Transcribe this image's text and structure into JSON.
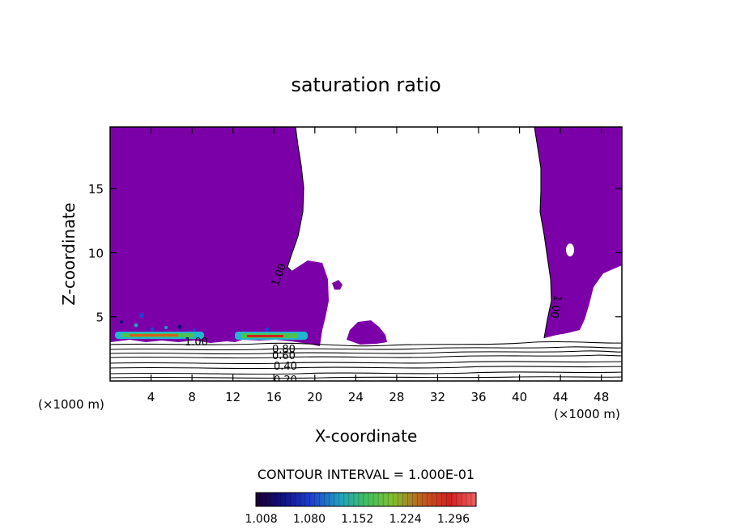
{
  "chart_data": {
    "type": "contour",
    "title": "saturation ratio",
    "xlabel": "X-coordinate",
    "ylabel": "Z-coordinate",
    "x_unit_left": "(×1000 m)",
    "x_unit_right": "(×1000 m)",
    "xlim": [
      0,
      50
    ],
    "ylim": [
      0,
      19.8
    ],
    "x_ticks": [
      4,
      8,
      12,
      16,
      20,
      24,
      28,
      32,
      36,
      40,
      44,
      48
    ],
    "y_ticks": [
      5,
      10,
      15
    ],
    "contour_labels": [
      "1.00",
      "1.00",
      "1.00",
      "0.80",
      "0.60",
      "0.40",
      "0.20"
    ],
    "contour_interval_text": "CONTOUR INTERVAL = 1.000E-01",
    "colorbar_labels": [
      "1.008",
      "1.080",
      "1.152",
      "1.224",
      "1.296"
    ],
    "colorbar_range": [
      1.0,
      1.33
    ],
    "fill_color": "#7b00a8",
    "supersaturated_region_fill": "purple",
    "purple_regions": [
      {
        "name": "left-cloud",
        "x_range": [
          0,
          21
        ],
        "z_range": [
          3.0,
          19.8
        ]
      },
      {
        "name": "mid-cloud",
        "x_range": [
          22.5,
          27
        ],
        "z_range": [
          2.8,
          4.6
        ]
      },
      {
        "name": "right-cloud",
        "x_range": [
          41.5,
          50
        ],
        "z_range": [
          3.3,
          19.8
        ]
      }
    ],
    "background_contours": [
      0.2,
      0.3,
      0.4,
      0.5,
      0.6,
      0.7,
      0.8,
      0.9
    ]
  }
}
